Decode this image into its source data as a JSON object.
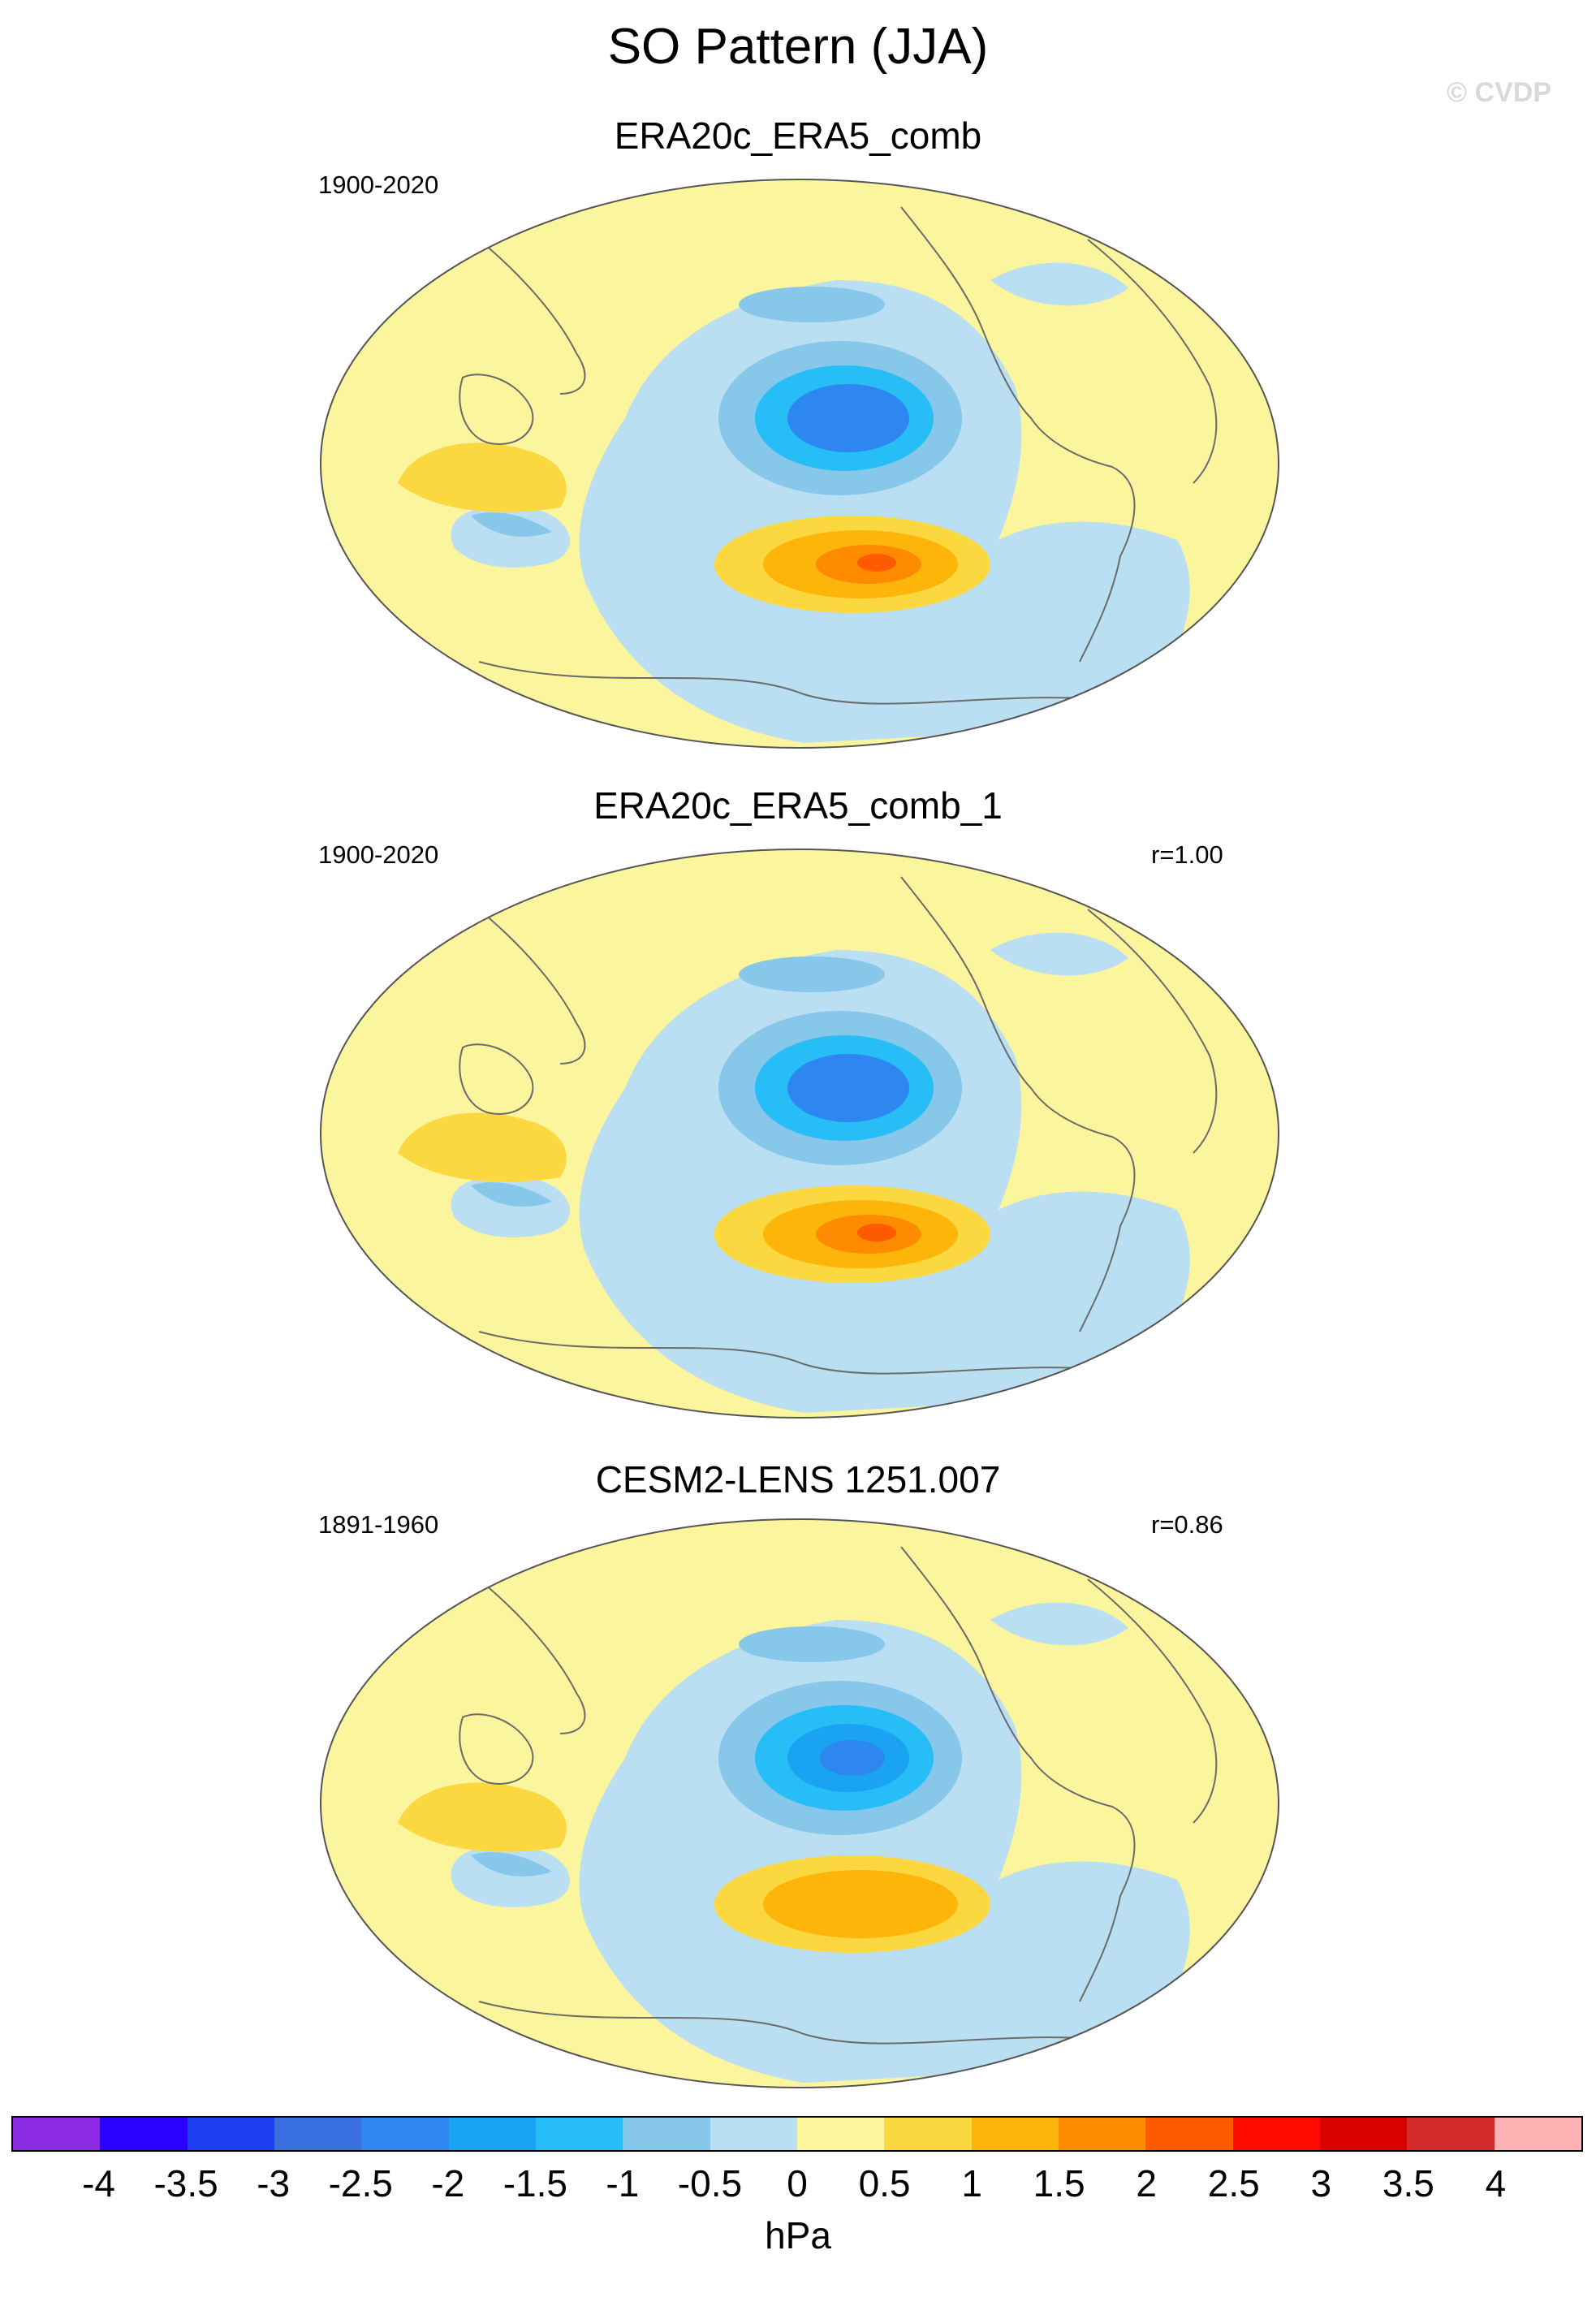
{
  "figure": {
    "title": "SO Pattern (JJA)",
    "copyright": "© CVDP"
  },
  "panels": [
    {
      "title": "ERA20c_ERA5_comb",
      "years": "1900-2020",
      "corr": ""
    },
    {
      "title": "ERA20c_ERA5_comb_1",
      "years": "1900-2020",
      "corr": "r=1.00"
    },
    {
      "title": "CESM2-LENS 1251.007",
      "years": "1891-1960",
      "corr": "r=0.86"
    }
  ],
  "colorbar": {
    "units": "hPa",
    "labels": [
      "-4",
      "-3.5",
      "-3",
      "-2.5",
      "-2",
      "-1.5",
      "-1",
      "-0.5",
      "0",
      "0.5",
      "1",
      "1.5",
      "2",
      "2.5",
      "3",
      "3.5",
      "4"
    ],
    "colors": [
      "#8a2be2",
      "#2a00ff",
      "#1f3ff2",
      "#3a6fe0",
      "#2e86f0",
      "#1aa3f2",
      "#27bdf7",
      "#86c7ea",
      "#badff2",
      "#fbf59d",
      "#fcd840",
      "#fdb50a",
      "#fe8a00",
      "#fe5a00",
      "#fe0a00",
      "#d80000",
      "#d12a2a",
      "#fdb3b3"
    ]
  },
  "map_style": {
    "land_line": "#6b6b6b",
    "ocean_background": "#fbf59d",
    "outline": "#555555"
  }
}
